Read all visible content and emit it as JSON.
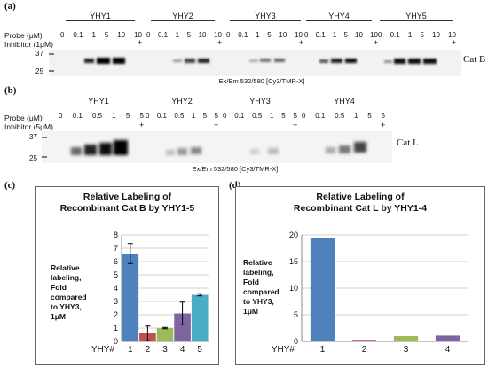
{
  "panel_a": {
    "label": "(a)",
    "groups": [
      "YHY1",
      "YHY2",
      "YHY3",
      "YHY4",
      "YHY5"
    ],
    "lanes": [
      "0",
      "0.1",
      "1",
      "5",
      "10",
      "10"
    ],
    "inhibitor_mark": "+",
    "row_probe": "Probe (μM)",
    "row_inhibitor": "Inhibitor (1μM)",
    "mw_markers": [
      "37",
      "25"
    ],
    "caption": "Ex/Em 532/580 [Cy3/TMR-X]",
    "enzyme": "Cat B"
  },
  "panel_b": {
    "label": "(b)",
    "groups": [
      "YHY1",
      "YHY2",
      "YHY3",
      "YHY4"
    ],
    "lanes": [
      "0",
      "0.1",
      "0.5",
      "1",
      "5",
      "5"
    ],
    "inhibitor_mark": "+",
    "row_probe": "Probe (μM)",
    "row_inhibitor": "Inhibitor (5μM)",
    "mw_markers": [
      "37",
      "25"
    ],
    "caption": "Ex/Em 532/580 [Cy3/TMR-X]",
    "enzyme": "Cat L"
  },
  "panel_c": {
    "label": "(c)",
    "title_line1": "Relative Labeling of",
    "title_line2": "Recombinant Cat B by YHY1-5",
    "ylabel_lines": [
      "Relative",
      "labeling,",
      "Fold",
      "compared",
      "to YHY3,",
      "1μM"
    ],
    "x_prefix": "YHY#"
  },
  "panel_d": {
    "label": "(d)",
    "title_line1": "Relative Labeling of",
    "title_line2": "Recombinant Cat L by YHY1-4",
    "ylabel_lines": [
      "Relative",
      "labeling,",
      "Fold",
      "compared",
      "to YHY3,",
      "1μM"
    ],
    "x_prefix": "YHY#"
  },
  "chart_data": [
    {
      "type": "bar",
      "title": "Relative Labeling of Recombinant Cat B by YHY1-5",
      "xlabel": "YHY#",
      "ylabel": "Relative labeling, Fold compared to YHY3, 1μM",
      "categories": [
        "1",
        "2",
        "3",
        "4",
        "5"
      ],
      "values": [
        6.6,
        0.6,
        1.0,
        2.1,
        3.5
      ],
      "errors": [
        0.75,
        0.55,
        0.05,
        0.85,
        0.08
      ],
      "colors": [
        "#4f81bd",
        "#c0504d",
        "#9bbb59",
        "#8064a2",
        "#4bacc6"
      ],
      "ylim": [
        0,
        8
      ],
      "yticks": [
        0,
        1,
        2,
        3,
        4,
        5,
        6,
        7,
        8
      ],
      "grid": true
    },
    {
      "type": "bar",
      "title": "Relative Labeling of Recombinant Cat L by YHY1-4",
      "xlabel": "YHY#",
      "ylabel": "Relative labeling, Fold compared to YHY3, 1μM",
      "categories": [
        "1",
        "2",
        "3",
        "4"
      ],
      "values": [
        19.5,
        0.3,
        1.0,
        1.1
      ],
      "colors": [
        "#4f81bd",
        "#c0504d",
        "#9bbb59",
        "#8064a2"
      ],
      "ylim": [
        0,
        20
      ],
      "yticks": [
        0,
        5,
        10,
        15,
        20
      ],
      "grid": true
    }
  ]
}
